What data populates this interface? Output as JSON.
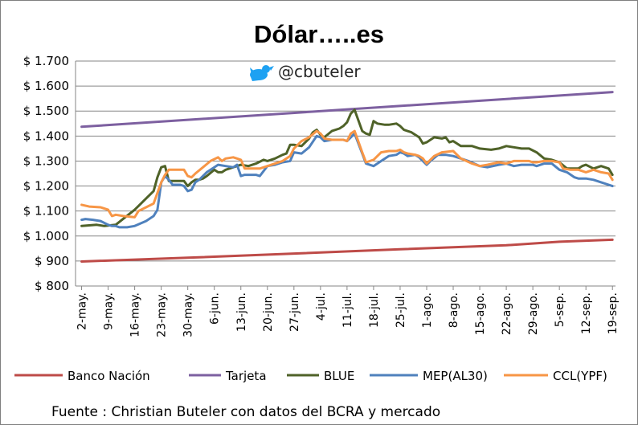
{
  "chart_data": {
    "type": "line",
    "title": "Dólar…..es",
    "handle": "@cbuteler",
    "source": "Fuente : Christian Buteler con datos del BCRA y mercado",
    "ylim": [
      800,
      1700
    ],
    "ytick_values": [
      800,
      900,
      1000,
      1100,
      1200,
      1300,
      1400,
      1500,
      1600,
      1700
    ],
    "ytick_labels": [
      "$ 800",
      "$ 900",
      "$ 1.000",
      "$ 1.100",
      "$ 1.200",
      "$ 1.300",
      "$ 1.400",
      "$ 1.500",
      "$ 1.600",
      "$ 1.700"
    ],
    "xtick_labels": [
      "2-may.",
      "9-may.",
      "16-may.",
      "23-may.",
      "30-may.",
      "6-jun.",
      "13-jun.",
      "20-jun.",
      "27-jun.",
      "4-jul.",
      "11-jul.",
      "18-jul.",
      "25-jul.",
      "1-ago.",
      "8-ago.",
      "15-ago.",
      "22-ago.",
      "29-ago.",
      "5-sep.",
      "12-sep.",
      "19-sep."
    ],
    "xtick_days": [
      0,
      7,
      14,
      21,
      28,
      35,
      42,
      49,
      56,
      63,
      70,
      77,
      84,
      91,
      98,
      105,
      112,
      119,
      126,
      133,
      140
    ],
    "grid": true,
    "legend_position": "bottom",
    "series": [
      {
        "name": "Banco Nación",
        "color": "#be4b48",
        "days": [
          0,
          28,
          56,
          84,
          112,
          126,
          140
        ],
        "values": [
          898,
          913,
          930,
          947,
          963,
          977,
          985
        ]
      },
      {
        "name": "Tarjeta",
        "color": "#7d60a0",
        "days": [
          0,
          140
        ],
        "values": [
          1437,
          1576
        ]
      },
      {
        "name": "BLUE",
        "color": "#4f6228",
        "days": [
          0,
          4,
          6,
          9,
          14,
          17,
          19,
          20,
          21,
          22,
          23,
          26,
          27,
          28,
          29,
          30,
          31,
          32,
          33,
          35,
          36,
          37,
          38,
          40,
          42,
          44,
          46,
          48,
          49,
          51,
          53,
          54,
          55,
          56,
          58,
          59,
          60,
          61,
          62,
          63,
          64,
          66,
          68,
          69,
          70,
          71,
          72,
          74,
          75,
          76,
          77,
          78,
          80,
          81,
          83,
          84,
          85,
          87,
          89,
          90,
          91,
          93,
          95,
          96,
          97,
          98,
          100,
          103,
          105,
          108,
          110,
          112,
          114,
          116,
          118,
          120,
          122,
          124,
          126,
          128,
          131,
          132,
          133,
          135,
          137,
          139,
          140
        ],
        "values": [
          1040,
          1045,
          1040,
          1045,
          1105,
          1150,
          1180,
          1235,
          1275,
          1280,
          1220,
          1220,
          1220,
          1200,
          1215,
          1225,
          1225,
          1230,
          1240,
          1265,
          1255,
          1255,
          1265,
          1275,
          1285,
          1280,
          1290,
          1305,
          1300,
          1310,
          1325,
          1330,
          1365,
          1365,
          1360,
          1375,
          1390,
          1415,
          1425,
          1405,
          1395,
          1420,
          1430,
          1440,
          1455,
          1490,
          1505,
          1420,
          1410,
          1405,
          1460,
          1450,
          1445,
          1445,
          1450,
          1440,
          1425,
          1415,
          1395,
          1370,
          1375,
          1395,
          1390,
          1395,
          1375,
          1380,
          1360,
          1360,
          1350,
          1345,
          1350,
          1360,
          1355,
          1350,
          1350,
          1335,
          1310,
          1305,
          1295,
          1270,
          1270,
          1280,
          1285,
          1270,
          1280,
          1270,
          1245
        ]
      },
      {
        "name": "MEP(AL30)",
        "color": "#4f81bd",
        "days": [
          0,
          1,
          3,
          5,
          7,
          8,
          9,
          10,
          12,
          14,
          17,
          19,
          20,
          21,
          22,
          23,
          24,
          26,
          27,
          28,
          29,
          30,
          31,
          33,
          35,
          36,
          38,
          40,
          41,
          42,
          43,
          44,
          46,
          47,
          49,
          51,
          53,
          55,
          56,
          58,
          60,
          62,
          63,
          64,
          66,
          68,
          69,
          70,
          71,
          72,
          74,
          75,
          77,
          79,
          81,
          83,
          84,
          85,
          86,
          88,
          89,
          90,
          91,
          92,
          94,
          96,
          98,
          100,
          102,
          105,
          107,
          110,
          112,
          114,
          116,
          118,
          119,
          120,
          122,
          124,
          126,
          128,
          130,
          131,
          133,
          135,
          137,
          139,
          140
        ],
        "values": [
          1065,
          1068,
          1065,
          1060,
          1045,
          1040,
          1040,
          1035,
          1035,
          1040,
          1060,
          1080,
          1105,
          1215,
          1240,
          1225,
          1205,
          1205,
          1200,
          1180,
          1185,
          1215,
          1225,
          1255,
          1275,
          1285,
          1280,
          1275,
          1285,
          1240,
          1245,
          1245,
          1245,
          1240,
          1280,
          1285,
          1295,
          1300,
          1335,
          1330,
          1355,
          1400,
          1395,
          1380,
          1385,
          1385,
          1385,
          1380,
          1395,
          1410,
          1330,
          1290,
          1280,
          1300,
          1320,
          1325,
          1335,
          1330,
          1320,
          1325,
          1315,
          1300,
          1285,
          1300,
          1325,
          1325,
          1320,
          1310,
          1300,
          1280,
          1275,
          1285,
          1290,
          1280,
          1285,
          1285,
          1285,
          1280,
          1290,
          1290,
          1265,
          1255,
          1235,
          1230,
          1230,
          1225,
          1215,
          1205,
          1200
        ]
      },
      {
        "name": "CCL(YPF)",
        "color": "#f79646",
        "days": [
          0,
          2,
          5,
          7,
          8,
          9,
          11,
          14,
          15,
          17,
          19,
          21,
          22,
          23,
          25,
          27,
          28,
          29,
          30,
          32,
          34,
          36,
          37,
          38,
          40,
          41,
          42,
          43,
          45,
          47,
          49,
          51,
          53,
          55,
          56,
          58,
          60,
          62,
          63,
          64,
          66,
          68,
          69,
          70,
          71,
          72,
          74,
          75,
          77,
          79,
          81,
          83,
          84,
          85,
          86,
          88,
          89,
          90,
          91,
          93,
          95,
          98,
          100,
          103,
          105,
          107,
          110,
          112,
          114,
          116,
          118,
          119,
          120,
          122,
          124,
          126,
          127,
          129,
          131,
          133,
          135,
          137,
          139,
          140
        ],
        "values": [
          1125,
          1118,
          1115,
          1105,
          1080,
          1085,
          1080,
          1075,
          1100,
          1115,
          1130,
          1215,
          1245,
          1265,
          1265,
          1265,
          1240,
          1235,
          1250,
          1275,
          1300,
          1315,
          1300,
          1310,
          1315,
          1310,
          1305,
          1270,
          1270,
          1270,
          1280,
          1290,
          1300,
          1320,
          1350,
          1380,
          1395,
          1420,
          1410,
          1390,
          1385,
          1385,
          1385,
          1380,
          1410,
          1420,
          1335,
          1295,
          1305,
          1335,
          1340,
          1340,
          1345,
          1335,
          1330,
          1325,
          1320,
          1310,
          1290,
          1320,
          1335,
          1340,
          1310,
          1290,
          1280,
          1285,
          1295,
          1290,
          1300,
          1300,
          1300,
          1295,
          1295,
          1300,
          1300,
          1295,
          1270,
          1265,
          1265,
          1255,
          1265,
          1255,
          1250,
          1225
        ]
      }
    ]
  }
}
